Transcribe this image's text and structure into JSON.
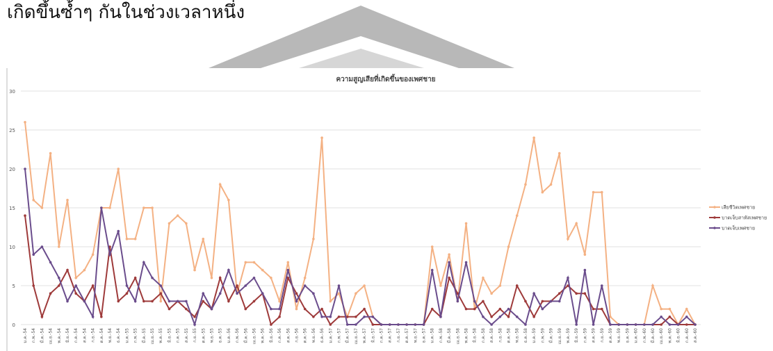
{
  "heading": "เกิดขึ้นซ้ำๆ กันในช่วงเวลาหนึ่ง",
  "chart_data": {
    "type": "line",
    "title": "ความสูญเสียที่เกิดขึ้นของเพศชาย",
    "categories": [
      "ม.ค.-54",
      "ก.พ.-54",
      "มี.ค.-54",
      "เม.ย.-54",
      "พ.ค.-54",
      "มิ.ย.-54",
      "ก.ค.-54",
      "ส.ค.-54",
      "ก.ย.-54",
      "ต.ค.-54",
      "พ.ย.-54",
      "ธ.ค.-54",
      "ม.ค.-55",
      "ก.พ.-55",
      "มี.ค.-55",
      "เม.ย.-55",
      "พ.ค.-55",
      "มิ.ย.-55",
      "ก.ค.-55",
      "ส.ค.-55",
      "ก.ย.-55",
      "ต.ค.-55",
      "พ.ย.-55",
      "ธ.ค.-55",
      "ม.ค.-56",
      "ก.พ.-56",
      "มี.ค.-56",
      "เม.ย.-56",
      "พ.ค.-56",
      "มิ.ย.-56",
      "ก.ค.-56",
      "ส.ค.-56",
      "ก.ย.-56",
      "ต.ค.-56",
      "พ.ย.-56",
      "ธ.ค.-56",
      "ม.ค.-57",
      "ก.พ.-57",
      "มี.ค.-57",
      "เม.ย.-57",
      "พ.ค.-57",
      "มิ.ย.-57",
      "ก.ค.-57",
      "ส.ค.-57",
      "ก.ย.-57",
      "ต.ค.-57",
      "พ.ย.-57",
      "ธ.ค.-57",
      "ม.ค.-58",
      "ก.พ.-58",
      "มี.ค.-58",
      "เม.ย.-58",
      "พ.ค.-58",
      "มิ.ย.-58",
      "ก.ค.-58",
      "ส.ค.-58",
      "ก.ย.-58",
      "ต.ค.-58",
      "พ.ย.-58",
      "ธ.ค.-58",
      "ม.ค.-59",
      "ก.พ.-59",
      "มี.ค.-59",
      "เม.ย.-59",
      "พ.ค.-59",
      "มิ.ย.-59",
      "ก.ค.-59",
      "ส.ค.-59",
      "ก.ย.-59",
      "ต.ค.-59",
      "พ.ย.-59",
      "ธ.ค.-59",
      "ม.ค.-60",
      "ก.พ.-60",
      "มี.ค.-60",
      "เม.ย.-60",
      "พ.ค.-60",
      "มิ.ย.-60",
      "ก.ค.-60",
      "ส.ค.-60"
    ],
    "series": [
      {
        "name": "เสียชีวิตเพศชาย",
        "color": "#f4b183",
        "values": [
          26,
          16,
          15,
          22,
          10,
          16,
          6,
          7,
          9,
          15,
          15,
          20,
          11,
          11,
          15,
          15,
          3,
          13,
          14,
          13,
          7,
          11,
          6,
          18,
          16,
          4,
          8,
          8,
          7,
          6,
          3,
          8,
          2,
          6,
          11,
          24,
          3,
          4,
          1,
          4,
          5,
          1,
          0,
          0,
          0,
          0,
          0,
          0,
          10,
          5,
          9,
          3,
          13,
          2,
          6,
          4,
          5,
          10,
          14,
          18,
          24,
          17,
          18,
          22,
          11,
          13,
          9,
          17,
          17,
          1,
          0,
          0,
          0,
          0,
          5,
          2,
          2,
          0,
          2,
          0
        ]
      },
      {
        "name": "บาดเจ็บสาหัสเพศชาย",
        "color": "#9e3a3a",
        "values": [
          14,
          5,
          1,
          4,
          5,
          7,
          4,
          3,
          5,
          1,
          10,
          3,
          4,
          6,
          3,
          3,
          4,
          2,
          3,
          2,
          1,
          3,
          2,
          6,
          3,
          5,
          2,
          3,
          4,
          0,
          1,
          6,
          4,
          2,
          1,
          2,
          0,
          1,
          1,
          1,
          2,
          0,
          0,
          0,
          0,
          0,
          0,
          0,
          2,
          1,
          6,
          4,
          2,
          2,
          3,
          1,
          2,
          1,
          5,
          3,
          1,
          3,
          3,
          4,
          5,
          4,
          4,
          2,
          2,
          0,
          0,
          0,
          0,
          0,
          0,
          0,
          1,
          0,
          0,
          0
        ]
      },
      {
        "name": "บาดเจ็บเพศชาย",
        "color": "#6a4c8c",
        "values": [
          20,
          9,
          10,
          8,
          6,
          3,
          5,
          3,
          1,
          15,
          9,
          12,
          5,
          3,
          8,
          6,
          5,
          3,
          3,
          3,
          0,
          4,
          2,
          4,
          7,
          4,
          5,
          6,
          4,
          2,
          2,
          7,
          3,
          5,
          4,
          1,
          1,
          5,
          0,
          0,
          1,
          1,
          0,
          0,
          0,
          0,
          0,
          0,
          7,
          1,
          8,
          3,
          8,
          3,
          1,
          0,
          1,
          2,
          1,
          0,
          4,
          2,
          3,
          3,
          6,
          0,
          7,
          0,
          5,
          0,
          0,
          0,
          0,
          0,
          0,
          1,
          0,
          0,
          1,
          0
        ]
      }
    ],
    "ylim": [
      0,
      30
    ],
    "yticks": [
      0,
      5,
      10,
      15,
      20,
      25,
      30
    ],
    "grid": true,
    "legend": "right"
  }
}
